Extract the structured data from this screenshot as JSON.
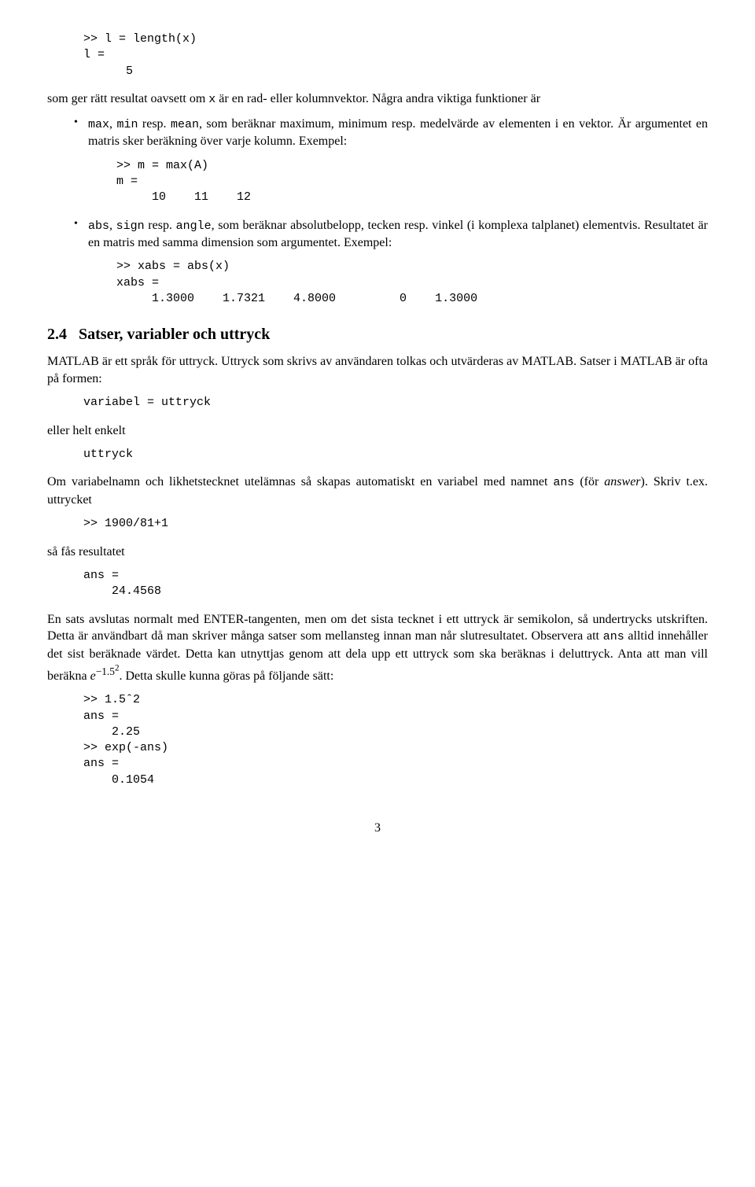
{
  "code_lengthx": ">> l = length(x)\nl =\n      5",
  "para_intro1": "som ger rätt resultat oavsett om ",
  "code_x": "x",
  "para_intro2": " är en rad- eller kolumnvektor. Några andra viktiga funktioner är",
  "bullets": {
    "b1": {
      "c1": "max",
      "t1": ", ",
      "c2": "min",
      "t2": " resp. ",
      "c3": "mean",
      "t3": ", som beräknar maximum, minimum resp. medelvärde av elementen i en vektor. Är argumentet en matris sker beräkning över varje kolumn. Exempel:",
      "code": ">> m = max(A)\nm =\n     10    11    12"
    },
    "b2": {
      "c1": "abs",
      "t1": ", ",
      "c2": "sign",
      "t2": " resp. ",
      "c3": "angle",
      "t3": ", som beräknar absolutbelopp, tecken resp. vinkel (i komplexa talplanet) elementvis. Resultatet är en matris med samma dimension som argumentet. Exempel:",
      "code": ">> xabs = abs(x)\nxabs =\n     1.3000    1.7321    4.8000         0    1.3000"
    }
  },
  "sec24": {
    "num": "2.4",
    "title": "Satser, variabler och uttryck"
  },
  "p24a_1": "M",
  "p24a_2": "ATLAB",
  "p24a_3": " är ett språk för uttryck. Uttryck som skrivs av användaren tolkas och utvärderas av M",
  "p24a_4": "ATLAB",
  "p24a_5": ". Satser i M",
  "p24a_6": "ATLAB",
  "p24a_7": " är ofta på formen:",
  "code_var_uttryck": "variabel = uttryck",
  "p24b": "eller helt enkelt",
  "code_uttryck": "uttryck",
  "p24c_1": "Om variabelnamn och likhetstecknet utelämnas så skapas automatiskt en variabel med namnet ",
  "code_ans": "ans",
  "p24c_2": " (för ",
  "p24c_answer": "answer",
  "p24c_3": "). Skriv t.ex. uttrycket",
  "code_1900": ">> 1900/81+1",
  "p24d": "så fås resultatet",
  "code_ans_24": "ans =\n    24.4568",
  "p24e_1": "En sats avslutas normalt med ENTER-tangenten, men om det sista tecknet i ett uttryck är semikolon, så undertrycks utskriften. Detta är användbart då man skriver många satser som mellansteg innan man når slutresultatet. Observera att ",
  "p24e_2": " alltid innehåller det sist beräknade värdet. Detta kan utnyttjas genom att dela upp ett uttryck som ska beräknas i deluttryck. Anta att man vill beräkna ",
  "p24e_exp_base": "e",
  "p24e_exp_sup1": "−1.5",
  "p24e_exp_sup2": "2",
  "p24e_3": ". Detta skulle kunna göras på följande sätt:",
  "code_final": ">> 1.5ˆ2\nans =\n    2.25\n>> exp(-ans)\nans =\n    0.1054",
  "pagenum": "3"
}
